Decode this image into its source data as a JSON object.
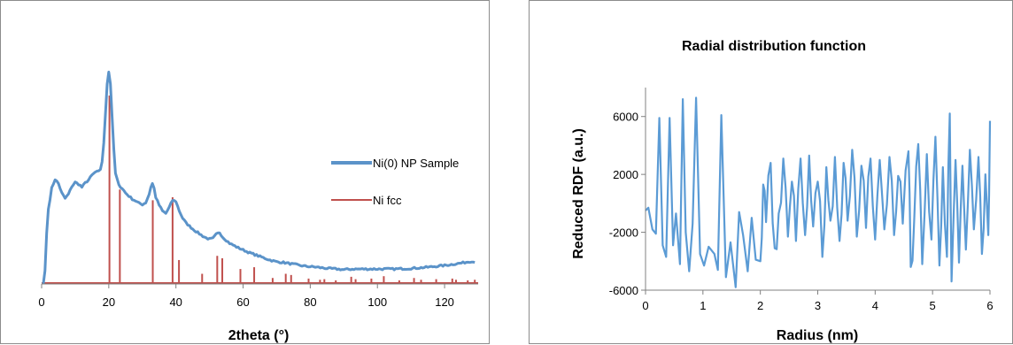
{
  "colors": {
    "sample": "#5b93c9",
    "fcc": "#c0504d",
    "rdf": "#5b9bd5",
    "axis": "#808080"
  },
  "chart_data": [
    {
      "type": "line",
      "title": "",
      "xlabel": "2theta (°)",
      "ylabel": "",
      "xlim": [
        0,
        130
      ],
      "xticks": [
        0,
        20,
        40,
        60,
        80,
        100,
        120
      ],
      "y_axis_labels_shown": false,
      "grid": false,
      "legend": "right",
      "series": [
        {
          "name": "Ni(0) NP Sample",
          "kind": "line",
          "points": [
            [
              0.5,
              0
            ],
            [
              1,
              22
            ],
            [
              1.5,
              85
            ],
            [
              2,
              125
            ],
            [
              3,
              160
            ],
            [
              4,
              175
            ],
            [
              5,
              168
            ],
            [
              6,
              152
            ],
            [
              7,
              143
            ],
            [
              8,
              150
            ],
            [
              9,
              163
            ],
            [
              10,
              170
            ],
            [
              11,
              167
            ],
            [
              12,
              162
            ],
            [
              13,
              169
            ],
            [
              14,
              174
            ],
            [
              15,
              182
            ],
            [
              16,
              187
            ],
            [
              17,
              188
            ],
            [
              17.5,
              192
            ],
            [
              18,
              205
            ],
            [
              18.5,
              235
            ],
            [
              19,
              285
            ],
            [
              19.5,
              335
            ],
            [
              20,
              355
            ],
            [
              20.5,
              335
            ],
            [
              21,
              280
            ],
            [
              21.5,
              225
            ],
            [
              22,
              185
            ],
            [
              23,
              165
            ],
            [
              24,
              160
            ],
            [
              25,
              152
            ],
            [
              26,
              147
            ],
            [
              27,
              142
            ],
            [
              28,
              139
            ],
            [
              29,
              135
            ],
            [
              30,
              133
            ],
            [
              31,
              136
            ],
            [
              32,
              150
            ],
            [
              32.5,
              162
            ],
            [
              33,
              168
            ],
            [
              33.5,
              160
            ],
            [
              34,
              145
            ],
            [
              35,
              132
            ],
            [
              36,
              122
            ],
            [
              37,
              118
            ],
            [
              38,
              128
            ],
            [
              39,
              140
            ],
            [
              40,
              138
            ],
            [
              41,
              122
            ],
            [
              42,
              110
            ],
            [
              43,
              102
            ],
            [
              44,
              97
            ],
            [
              45,
              92
            ],
            [
              46,
              88
            ],
            [
              47,
              84
            ],
            [
              48,
              80
            ],
            [
              49,
              77
            ],
            [
              50,
              75
            ],
            [
              51,
              76
            ],
            [
              52,
              83
            ],
            [
              53,
              86
            ],
            [
              54,
              78
            ],
            [
              56,
              68
            ],
            [
              58,
              62
            ],
            [
              60,
              57
            ],
            [
              62,
              52
            ],
            [
              64,
              48
            ],
            [
              66,
              44
            ],
            [
              68,
              40
            ],
            [
              70,
              37
            ],
            [
              72,
              36
            ],
            [
              74,
              34
            ],
            [
              76,
              32
            ],
            [
              78,
              30
            ],
            [
              80,
              29
            ],
            [
              82,
              28
            ],
            [
              85,
              26
            ],
            [
              88,
              25
            ],
            [
              90,
              24
            ],
            [
              93,
              25
            ],
            [
              96,
              25
            ],
            [
              100,
              25
            ],
            [
              105,
              25
            ],
            [
              110,
              26
            ],
            [
              115,
              28
            ],
            [
              120,
              31
            ],
            [
              125,
              35
            ],
            [
              128,
              38
            ],
            [
              129,
              36
            ]
          ]
        },
        {
          "name": "Ni fcc",
          "kind": "stick",
          "peaks": [
            [
              20.2,
              315
            ],
            [
              23.3,
              158
            ],
            [
              33.1,
              140
            ],
            [
              39.0,
              145
            ],
            [
              40.9,
              40
            ],
            [
              47.8,
              17
            ],
            [
              52.3,
              47
            ],
            [
              53.8,
              43
            ],
            [
              59.2,
              25
            ],
            [
              63.3,
              28
            ],
            [
              68.8,
              10
            ],
            [
              72.7,
              17
            ],
            [
              74.3,
              15
            ],
            [
              79.5,
              9
            ],
            [
              82.9,
              7
            ],
            [
              84.2,
              8
            ],
            [
              87.6,
              6
            ],
            [
              92.2,
              12
            ],
            [
              93.5,
              8
            ],
            [
              98.2,
              9
            ],
            [
              101.9,
              13
            ],
            [
              106.5,
              6
            ],
            [
              110.9,
              10
            ],
            [
              113.0,
              7
            ],
            [
              117.5,
              8
            ],
            [
              122.3,
              9
            ],
            [
              123.4,
              7
            ],
            [
              126.9,
              6
            ],
            [
              129.0,
              7
            ]
          ]
        }
      ]
    },
    {
      "type": "line",
      "title": "Radial distribution function",
      "xlabel": "Radius (nm)",
      "ylabel": "Reduced RDF (a.u.)",
      "xlim": [
        0,
        6
      ],
      "ylim": [
        -6000,
        8000
      ],
      "xticks": [
        0,
        1,
        2,
        3,
        4,
        5,
        6
      ],
      "yticks": [
        -6000,
        -2000,
        2000,
        6000
      ],
      "grid": false,
      "legend": "none",
      "series": [
        {
          "name": "",
          "seed": 12345,
          "anchors": [
            [
              0.0,
              -500
            ],
            [
              0.05,
              -300
            ],
            [
              0.12,
              -1800
            ],
            [
              0.18,
              -2100
            ],
            [
              0.24,
              5900
            ],
            [
              0.3,
              -2900
            ],
            [
              0.36,
              -3700
            ],
            [
              0.42,
              5900
            ],
            [
              0.48,
              -2900
            ],
            [
              0.53,
              -700
            ],
            [
              0.6,
              -4200
            ],
            [
              0.65,
              7200
            ],
            [
              0.7,
              -2000
            ],
            [
              0.76,
              -4700
            ],
            [
              0.82,
              -1400
            ],
            [
              0.88,
              7300
            ],
            [
              0.95,
              -3500
            ],
            [
              1.02,
              -4300
            ],
            [
              1.1,
              -3000
            ],
            [
              1.2,
              -3500
            ],
            [
              1.26,
              -4600
            ],
            [
              1.32,
              6100
            ],
            [
              1.4,
              -5100
            ],
            [
              1.48,
              -2700
            ],
            [
              1.57,
              -5800
            ],
            [
              1.63,
              -600
            ],
            [
              1.7,
              -2200
            ],
            [
              1.78,
              -4700
            ],
            [
              1.85,
              -1000
            ],
            [
              1.92,
              -3900
            ],
            [
              2.0,
              -4000
            ],
            [
              2.05,
              1300
            ],
            [
              2.1,
              -1300
            ],
            [
              2.18,
              2800
            ],
            [
              2.25,
              -3100
            ],
            [
              2.32,
              -700
            ],
            [
              2.4,
              3100
            ],
            [
              2.48,
              -2300
            ],
            [
              2.55,
              1500
            ],
            [
              2.62,
              -2600
            ],
            [
              2.7,
              3100
            ],
            [
              2.78,
              -2200
            ],
            [
              2.85,
              3300
            ],
            [
              2.92,
              -1600
            ],
            [
              3.0,
              1500
            ],
            [
              3.08,
              -3700
            ],
            [
              3.15,
              2500
            ],
            [
              3.22,
              -1200
            ],
            [
              3.3,
              3200
            ],
            [
              3.38,
              -2600
            ],
            [
              3.45,
              2800
            ],
            [
              3.52,
              -1200
            ],
            [
              3.6,
              3700
            ],
            [
              3.68,
              -2300
            ],
            [
              3.76,
              2600
            ],
            [
              3.84,
              -1700
            ],
            [
              3.92,
              3100
            ],
            [
              4.0,
              -2500
            ],
            [
              4.08,
              3000
            ],
            [
              4.16,
              -1800
            ],
            [
              4.25,
              3200
            ],
            [
              4.33,
              -2200
            ],
            [
              4.4,
              1900
            ],
            [
              4.48,
              -1400
            ],
            [
              4.58,
              3600
            ],
            [
              4.62,
              -4400
            ],
            [
              4.68,
              -1200
            ],
            [
              4.75,
              4100
            ],
            [
              4.82,
              -4200
            ],
            [
              4.9,
              3400
            ],
            [
              4.98,
              -2500
            ],
            [
              5.05,
              4600
            ],
            [
              5.12,
              -4300
            ],
            [
              5.18,
              2500
            ],
            [
              5.25,
              -3700
            ],
            [
              5.3,
              6200
            ],
            [
              5.33,
              -5400
            ],
            [
              5.4,
              3000
            ],
            [
              5.46,
              -4100
            ],
            [
              5.52,
              2600
            ],
            [
              5.58,
              -3200
            ],
            [
              5.65,
              3700
            ],
            [
              5.72,
              -1800
            ],
            [
              5.8,
              3200
            ],
            [
              5.86,
              -3500
            ],
            [
              5.92,
              2000
            ],
            [
              5.97,
              -2200
            ],
            [
              6.0,
              5700
            ]
          ]
        }
      ]
    }
  ]
}
